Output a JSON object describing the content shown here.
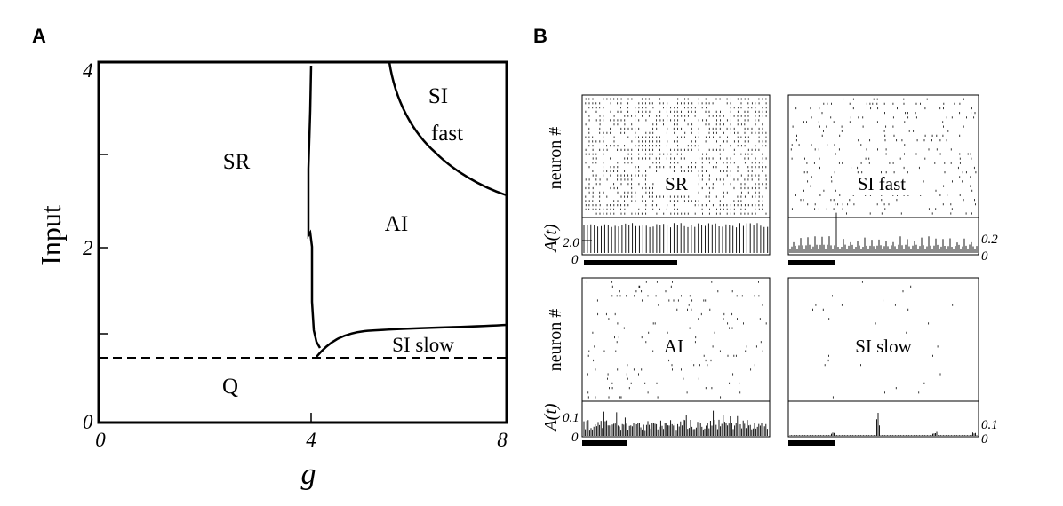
{
  "panel_a": {
    "label": "A",
    "y_axis_label": "Input",
    "x_axis_label": "g",
    "x_ticks": [
      "0",
      "4",
      "8"
    ],
    "y_ticks": [
      "0",
      "2",
      "4"
    ],
    "regions": {
      "sr": "SR",
      "ai": "AI",
      "si_fast_line1": "SI",
      "si_fast_line2": "fast",
      "si_slow": "SI slow",
      "q": "Q"
    }
  },
  "panel_b": {
    "label": "B",
    "row_label": "neuron #",
    "activity_label": "A(t)",
    "subplots": {
      "sr": {
        "title": "SR",
        "scale": "2.0",
        "zero": "0"
      },
      "si_fast": {
        "title": "SI fast",
        "scale": "0.2",
        "zero": "0"
      },
      "ai": {
        "title": "AI",
        "scale": "0.1",
        "zero": "0"
      },
      "si_slow": {
        "title": "SI slow",
        "scale": "0.1",
        "zero": "0"
      }
    }
  },
  "colors": {
    "ink": "#000000",
    "background": "#ffffff"
  }
}
